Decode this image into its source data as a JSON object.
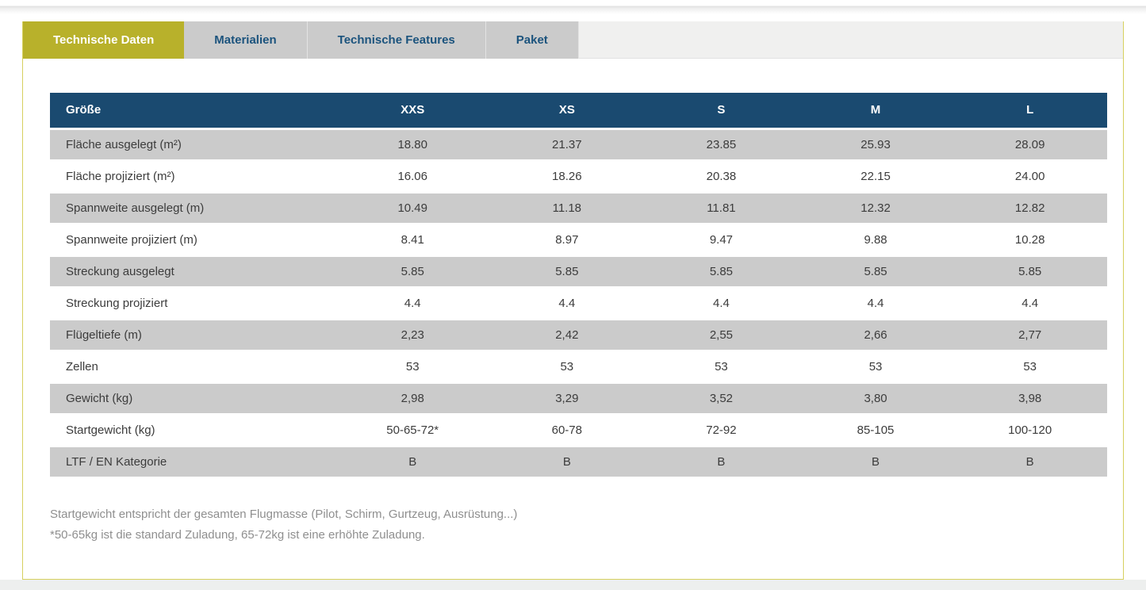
{
  "colors": {
    "accent": "#b8b12b",
    "accent_border": "#d6d05e",
    "header_blue": "#1a4a70",
    "tab_gray": "#cbcbcb",
    "tab_text": "#1b537d",
    "note_text": "#8f8f8f"
  },
  "tabs": [
    {
      "id": "technische-daten",
      "label": "Technische Daten",
      "active": true
    },
    {
      "id": "materialien",
      "label": "Materialien",
      "active": false
    },
    {
      "id": "technische-features",
      "label": "Technische Features",
      "active": false
    },
    {
      "id": "paket",
      "label": "Paket",
      "active": false
    }
  ],
  "table": {
    "header": [
      "Größe",
      "XXS",
      "XS",
      "S",
      "M",
      "L"
    ],
    "rows": [
      {
        "label": "Fläche ausgelegt (m²)",
        "values": [
          "18.80",
          "21.37",
          "23.85",
          "25.93",
          "28.09"
        ]
      },
      {
        "label": "Fläche projiziert (m²)",
        "values": [
          "16.06",
          "18.26",
          "20.38",
          "22.15",
          "24.00"
        ]
      },
      {
        "label": "Spannweite ausgelegt (m)",
        "values": [
          "10.49",
          "11.18",
          "11.81",
          "12.32",
          "12.82"
        ]
      },
      {
        "label": "Spannweite projiziert (m)",
        "values": [
          "8.41",
          "8.97",
          "9.47",
          "9.88",
          "10.28"
        ]
      },
      {
        "label": "Streckung ausgelegt",
        "values": [
          "5.85",
          "5.85",
          "5.85",
          "5.85",
          "5.85"
        ]
      },
      {
        "label": "Streckung projiziert",
        "values": [
          "4.4",
          "4.4",
          "4.4",
          "4.4",
          "4.4"
        ]
      },
      {
        "label": "Flügeltiefe (m)",
        "values": [
          "2,23",
          "2,42",
          "2,55",
          "2,66",
          "2,77"
        ]
      },
      {
        "label": "Zellen",
        "values": [
          "53",
          "53",
          "53",
          "53",
          "53"
        ]
      },
      {
        "label": "Gewicht (kg)",
        "values": [
          "2,98",
          "3,29",
          "3,52",
          "3,80",
          "3,98"
        ]
      },
      {
        "label": "Startgewicht (kg)",
        "values": [
          "50-65-72*",
          "60-78",
          "72-92",
          "85-105",
          "100-120"
        ]
      },
      {
        "label": "LTF / EN Kategorie",
        "values": [
          "B",
          "B",
          "B",
          "B",
          "B"
        ]
      }
    ]
  },
  "notes": [
    "Startgewicht entspricht der gesamten Flugmasse (Pilot, Schirm, Gurtzeug, Ausrüstung...)",
    "*50-65kg ist die standard Zuladung, 65-72kg ist eine erhöhte Zuladung."
  ]
}
